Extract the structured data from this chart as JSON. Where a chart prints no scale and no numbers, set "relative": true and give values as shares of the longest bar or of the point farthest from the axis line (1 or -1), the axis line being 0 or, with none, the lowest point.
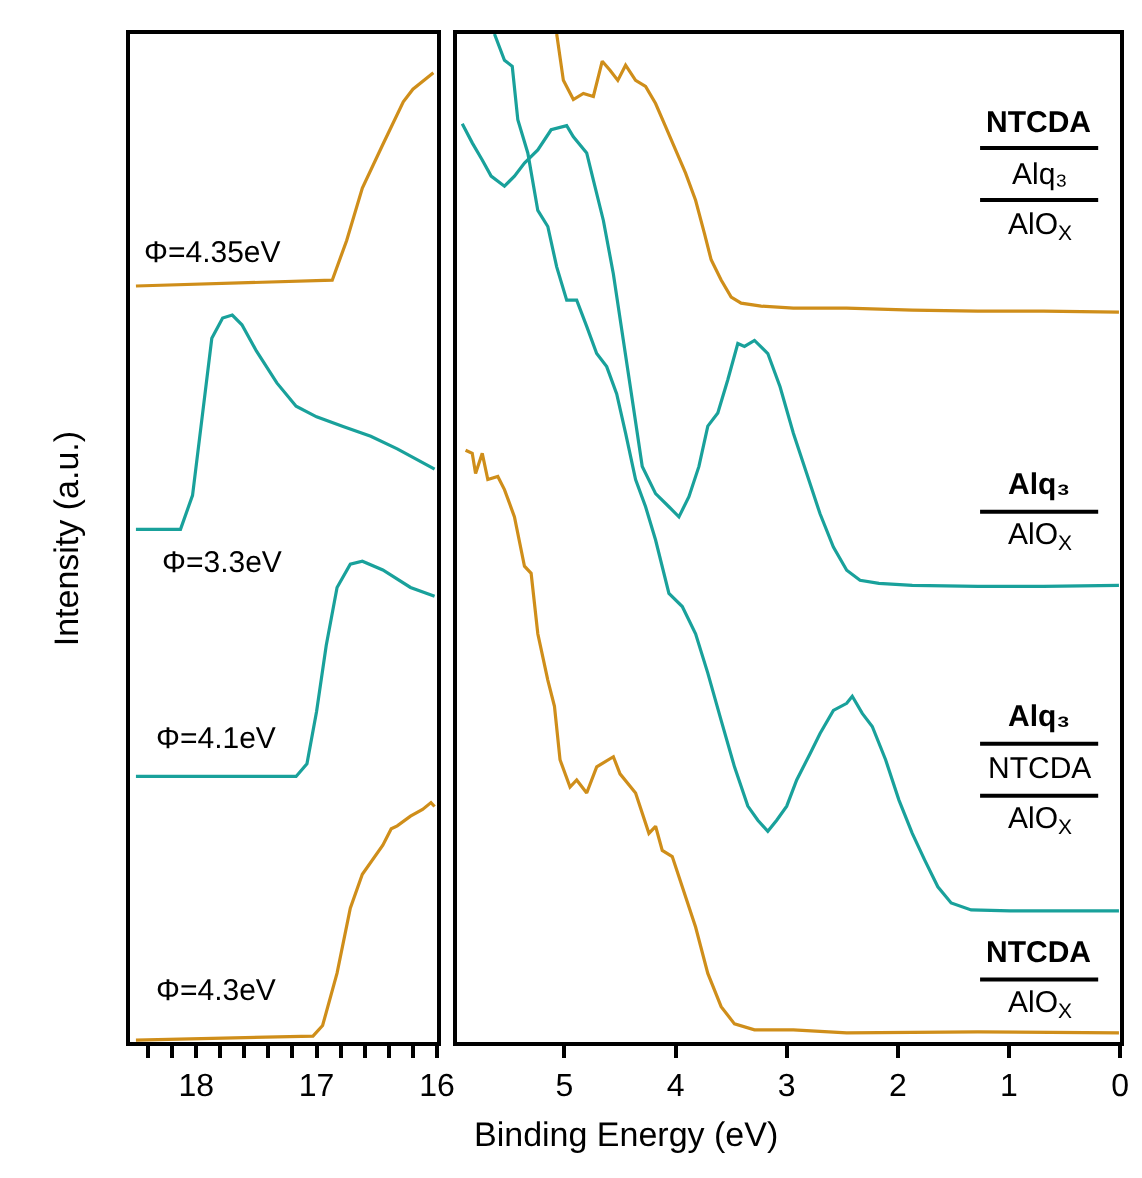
{
  "chart_data": [
    {
      "type": "line",
      "relative": true,
      "ylabel": "Intensity (a.u.)",
      "xlim": [
        18.55,
        16
      ],
      "xticks": [
        {
          "value": 18.4,
          "label": null
        },
        {
          "value": 18.2,
          "label": null
        },
        18,
        {
          "value": 17.8,
          "label": null
        },
        {
          "value": 17.6,
          "label": null
        },
        {
          "value": 17.4,
          "label": null
        },
        {
          "value": 17.2,
          "label": null
        },
        17,
        {
          "value": 16.8,
          "label": null
        },
        {
          "value": 16.6,
          "label": null
        },
        {
          "value": 16.4,
          "label": null
        },
        {
          "value": 16.2,
          "label": null
        },
        16
      ],
      "tick_labels": "x",
      "marker": "none",
      "line_style": "solid",
      "series": [
        {
          "color": "#cf8e1a",
          "x": [
            18.5,
            16.87,
            16.75,
            16.62,
            16.45,
            16.28,
            16.2,
            16.03
          ],
          "values": [
            0.78,
            0.786,
            0.827,
            0.881,
            0.926,
            0.97,
            0.983,
            1.0
          ]
        },
        {
          "color": "#19a19b",
          "x": [
            18.5,
            18.13,
            18.03,
            17.95,
            17.87,
            17.78,
            17.7,
            17.62,
            17.5,
            17.33,
            17.17,
            17.0,
            16.78,
            16.55,
            16.33,
            16.02
          ],
          "values": [
            0.529,
            0.529,
            0.564,
            0.645,
            0.726,
            0.747,
            0.75,
            0.74,
            0.713,
            0.68,
            0.656,
            0.645,
            0.635,
            0.625,
            0.612,
            0.591
          ]
        },
        {
          "color": "#19a19b",
          "x": [
            18.5,
            17.17,
            17.08,
            17.0,
            16.92,
            16.83,
            16.72,
            16.62,
            16.45,
            16.22,
            16.02
          ],
          "values": [
            0.274,
            0.274,
            0.287,
            0.341,
            0.409,
            0.469,
            0.493,
            0.496,
            0.487,
            0.469,
            0.46
          ]
        },
        {
          "color": "#cf8e1a",
          "x": [
            18.5,
            17.03,
            16.95,
            16.83,
            16.72,
            16.62,
            16.45,
            16.38,
            16.33,
            16.22,
            16.12,
            16.05,
            16.02
          ],
          "values": [
            0.002,
            0.006,
            0.017,
            0.071,
            0.138,
            0.173,
            0.203,
            0.22,
            0.223,
            0.233,
            0.24,
            0.247,
            0.243
          ]
        }
      ],
      "annotations": [
        "Φ=4.35eV",
        "Φ=3.3eV",
        "Φ=4.1eV",
        "Φ=4.3eV"
      ]
    },
    {
      "type": "line",
      "relative": true,
      "xlabel": "Binding Energy (eV)",
      "xlim": [
        5.97,
        0
      ],
      "xticks": [
        5,
        4,
        3,
        2,
        1,
        0
      ],
      "tick_labels": "x",
      "marker": "none",
      "line_style": "solid",
      "series": [
        {
          "color": "#cf8e1a",
          "x": [
            5.07,
            5.01,
            4.92,
            4.83,
            4.74,
            4.66,
            4.59,
            4.52,
            4.45,
            4.36,
            4.27,
            4.18,
            4.09,
            4.0,
            3.91,
            3.82,
            3.74,
            3.68,
            3.59,
            3.5,
            3.41,
            3.23,
            2.94,
            2.46,
            1.87,
            1.28,
            0.69,
            0.01
          ],
          "values": [
            1.0,
            0.954,
            0.935,
            0.941,
            0.938,
            0.973,
            0.964,
            0.954,
            0.969,
            0.954,
            0.948,
            0.931,
            0.908,
            0.885,
            0.862,
            0.835,
            0.802,
            0.776,
            0.756,
            0.739,
            0.733,
            0.73,
            0.728,
            0.728,
            0.726,
            0.725,
            0.725,
            0.724
          ]
        },
        {
          "color": "#19a19b",
          "x": [
            5.92,
            5.83,
            5.74,
            5.66,
            5.54,
            5.45,
            5.36,
            5.24,
            5.12,
            4.98,
            4.92,
            4.8,
            4.74,
            4.65,
            4.56,
            4.47,
            4.38,
            4.3,
            4.18,
            4.06,
            3.97,
            3.88,
            3.79,
            3.71,
            3.62,
            3.53,
            3.44,
            3.38,
            3.29,
            3.17,
            3.06,
            2.94,
            2.82,
            2.7,
            2.58,
            2.46,
            2.34,
            2.17,
            1.87,
            1.28,
            0.69,
            0.01
          ],
          "values": [
            0.911,
            0.892,
            0.875,
            0.859,
            0.849,
            0.859,
            0.872,
            0.885,
            0.905,
            0.909,
            0.898,
            0.882,
            0.855,
            0.815,
            0.762,
            0.696,
            0.63,
            0.571,
            0.544,
            0.531,
            0.521,
            0.541,
            0.571,
            0.611,
            0.624,
            0.657,
            0.693,
            0.69,
            0.696,
            0.683,
            0.65,
            0.604,
            0.564,
            0.524,
            0.491,
            0.468,
            0.458,
            0.455,
            0.453,
            0.452,
            0.452,
            0.453
          ]
        },
        {
          "color": "#19a19b",
          "x": [
            5.63,
            5.54,
            5.47,
            5.42,
            5.33,
            5.24,
            5.15,
            5.07,
            4.98,
            4.89,
            4.8,
            4.71,
            4.62,
            4.53,
            4.45,
            4.36,
            4.27,
            4.18,
            4.06,
            3.94,
            3.82,
            3.71,
            3.59,
            3.47,
            3.35,
            3.26,
            3.17,
            3.09,
            3.0,
            2.91,
            2.79,
            2.7,
            2.58,
            2.46,
            2.41,
            2.32,
            2.23,
            2.11,
            1.99,
            1.87,
            1.76,
            1.64,
            1.52,
            1.34,
            0.99,
            0.01
          ],
          "values": [
            1.0,
            0.974,
            0.968,
            0.915,
            0.882,
            0.825,
            0.809,
            0.769,
            0.736,
            0.736,
            0.71,
            0.683,
            0.67,
            0.643,
            0.604,
            0.558,
            0.531,
            0.498,
            0.445,
            0.432,
            0.405,
            0.366,
            0.319,
            0.273,
            0.234,
            0.22,
            0.209,
            0.22,
            0.234,
            0.26,
            0.286,
            0.306,
            0.329,
            0.336,
            0.343,
            0.326,
            0.313,
            0.28,
            0.24,
            0.207,
            0.181,
            0.154,
            0.138,
            0.131,
            0.13,
            0.13
          ]
        },
        {
          "color": "#cf8e1a",
          "x": [
            5.89,
            5.83,
            5.8,
            5.74,
            5.69,
            5.6,
            5.54,
            5.45,
            5.36,
            5.3,
            5.24,
            5.15,
            5.09,
            5.04,
            4.95,
            4.89,
            4.8,
            4.71,
            4.56,
            4.5,
            4.36,
            4.24,
            4.18,
            4.12,
            4.03,
            3.94,
            3.82,
            3.71,
            3.59,
            3.47,
            3.29,
            2.94,
            2.46,
            1.28,
            0.01
          ],
          "values": [
            0.587,
            0.584,
            0.564,
            0.584,
            0.558,
            0.561,
            0.548,
            0.521,
            0.472,
            0.465,
            0.405,
            0.359,
            0.333,
            0.28,
            0.253,
            0.26,
            0.247,
            0.273,
            0.283,
            0.266,
            0.247,
            0.207,
            0.214,
            0.19,
            0.184,
            0.154,
            0.114,
            0.068,
            0.035,
            0.018,
            0.012,
            0.012,
            0.009,
            0.01,
            0.009
          ]
        }
      ],
      "annotations": [
        "NTCDA\nAlq₃\nAlO$_{X}$",
        "Alq₃\nAlO$_{X}$",
        "Alq₃\nNTCDA\nAlO$_{X}$",
        "NTCDA\nAlO$_{X}$"
      ]
    }
  ]
}
